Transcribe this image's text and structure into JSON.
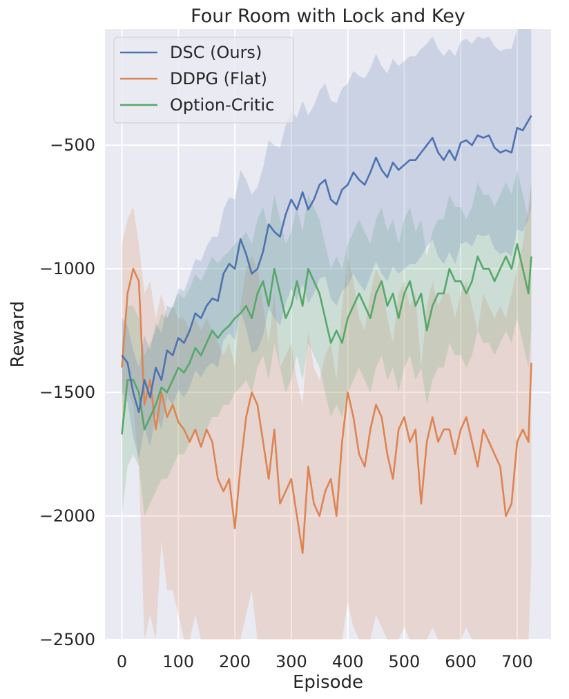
{
  "chart_data": {
    "type": "line",
    "title": "Four Room with Lock and Key",
    "xlabel": "Episode",
    "ylabel": "Reward",
    "xlim": [
      -30,
      760
    ],
    "ylim": [
      -2500,
      -30
    ],
    "xticks": [
      0,
      100,
      200,
      300,
      400,
      500,
      600,
      700
    ],
    "yticks": [
      -2500,
      -2000,
      -1500,
      -1000,
      -500
    ],
    "tick_labels_x": [
      "0",
      "100",
      "200",
      "300",
      "400",
      "500",
      "600",
      "700"
    ],
    "tick_labels_y": [
      "−2500",
      "−2000",
      "−1500",
      "−1000",
      "−500"
    ],
    "grid": true,
    "legend_position": "top-left",
    "background": "#eaeaf2",
    "series": [
      {
        "name": "DSC (Ours)",
        "color": "#4c72b0",
        "x": [
          0,
          10,
          20,
          30,
          40,
          50,
          60,
          70,
          80,
          90,
          100,
          110,
          120,
          130,
          140,
          150,
          160,
          170,
          180,
          190,
          200,
          210,
          220,
          230,
          240,
          250,
          260,
          270,
          280,
          290,
          300,
          310,
          320,
          330,
          340,
          350,
          360,
          370,
          380,
          390,
          400,
          410,
          420,
          430,
          440,
          450,
          460,
          470,
          480,
          490,
          500,
          510,
          520,
          530,
          540,
          550,
          560,
          570,
          580,
          590,
          600,
          610,
          620,
          630,
          640,
          650,
          660,
          670,
          680,
          690,
          700,
          710,
          720,
          725
        ],
        "mean": [
          -1350,
          -1380,
          -1500,
          -1580,
          -1450,
          -1520,
          -1400,
          -1450,
          -1330,
          -1350,
          -1280,
          -1300,
          -1250,
          -1180,
          -1200,
          -1150,
          -1120,
          -1130,
          -1020,
          -980,
          -1000,
          -880,
          -940,
          -1020,
          -1000,
          -930,
          -820,
          -850,
          -870,
          -780,
          -720,
          -760,
          -690,
          -760,
          -720,
          -660,
          -640,
          -720,
          -740,
          -680,
          -660,
          -610,
          -640,
          -660,
          -610,
          -550,
          -600,
          -630,
          -570,
          -600,
          -580,
          -560,
          -560,
          -530,
          -500,
          -470,
          -530,
          -560,
          -520,
          -560,
          -490,
          -480,
          -500,
          -460,
          -470,
          -460,
          -510,
          -530,
          -520,
          -530,
          -430,
          -440,
          -400,
          -380
        ],
        "upper": [
          -1200,
          -1230,
          -1330,
          -1400,
          -1270,
          -1330,
          -1220,
          -1260,
          -1150,
          -1160,
          -1080,
          -1090,
          -1030,
          -960,
          -970,
          -910,
          -870,
          -870,
          -760,
          -710,
          -720,
          -600,
          -640,
          -700,
          -670,
          -590,
          -480,
          -500,
          -510,
          -420,
          -360,
          -390,
          -320,
          -380,
          -340,
          -280,
          -250,
          -320,
          -330,
          -270,
          -250,
          -200,
          -220,
          -230,
          -190,
          -130,
          -180,
          -210,
          -150,
          -180,
          -160,
          -140,
          -140,
          -110,
          -90,
          -60,
          -110,
          -140,
          -110,
          -140,
          -80,
          -70,
          -90,
          -60,
          -70,
          -60,
          -100,
          -120,
          -110,
          -110,
          -20,
          -30,
          0,
          0
        ],
        "lower": [
          -1500,
          -1540,
          -1680,
          -1770,
          -1640,
          -1720,
          -1590,
          -1650,
          -1520,
          -1550,
          -1490,
          -1520,
          -1480,
          -1410,
          -1440,
          -1400,
          -1380,
          -1400,
          -1290,
          -1260,
          -1290,
          -1170,
          -1240,
          -1340,
          -1330,
          -1270,
          -1160,
          -1200,
          -1230,
          -1140,
          -1080,
          -1130,
          -1060,
          -1140,
          -1100,
          -1040,
          -1030,
          -1120,
          -1150,
          -1090,
          -1070,
          -1020,
          -1060,
          -1090,
          -1030,
          -970,
          -1020,
          -1050,
          -990,
          -1020,
          -1000,
          -980,
          -980,
          -950,
          -910,
          -880,
          -950,
          -980,
          -930,
          -980,
          -900,
          -890,
          -910,
          -860,
          -870,
          -860,
          -920,
          -940,
          -930,
          -950,
          -840,
          -850,
          -800,
          -760
        ]
      },
      {
        "name": "DDPG (Flat)",
        "color": "#dd8452",
        "x": [
          0,
          10,
          20,
          30,
          40,
          50,
          60,
          70,
          80,
          90,
          100,
          110,
          120,
          130,
          140,
          150,
          160,
          170,
          180,
          190,
          200,
          210,
          220,
          230,
          240,
          250,
          260,
          270,
          280,
          290,
          300,
          310,
          320,
          330,
          340,
          350,
          360,
          370,
          380,
          390,
          400,
          410,
          420,
          430,
          440,
          450,
          460,
          470,
          480,
          490,
          500,
          510,
          520,
          530,
          540,
          550,
          560,
          570,
          580,
          590,
          600,
          610,
          620,
          630,
          640,
          650,
          660,
          670,
          680,
          690,
          700,
          710,
          720,
          725
        ],
        "mean": [
          -1400,
          -1100,
          -1000,
          -1050,
          -1550,
          -1450,
          -1650,
          -1500,
          -1600,
          -1550,
          -1620,
          -1650,
          -1700,
          -1650,
          -1720,
          -1650,
          -1700,
          -1850,
          -1900,
          -1850,
          -2050,
          -1800,
          -1600,
          -1500,
          -1550,
          -1700,
          -1850,
          -1650,
          -1950,
          -1900,
          -1850,
          -2000,
          -2150,
          -1800,
          -1950,
          -2000,
          -1900,
          -1850,
          -2000,
          -1700,
          -1500,
          -1600,
          -1750,
          -1800,
          -1650,
          -1550,
          -1600,
          -1750,
          -1850,
          -1650,
          -1600,
          -1700,
          -1650,
          -1950,
          -1700,
          -1600,
          -1700,
          -1650,
          -1650,
          -1750,
          -1650,
          -1600,
          -1700,
          -1800,
          -1650,
          -1700,
          -1750,
          -1800,
          -2000,
          -1950,
          -1700,
          -1650,
          -1700,
          -1380
        ],
        "upper": [
          -900,
          -800,
          -750,
          -900,
          -1100,
          -1050,
          -1200,
          -1100,
          -1200,
          -1150,
          -1200,
          -1200,
          -1250,
          -1200,
          -1250,
          -1200,
          -1250,
          -1300,
          -1350,
          -1300,
          -1400,
          -1150,
          -1000,
          -950,
          -1000,
          -1150,
          -1300,
          -1100,
          -1400,
          -1350,
          -1300,
          -1450,
          -1550,
          -1250,
          -1400,
          -1450,
          -1350,
          -1300,
          -1450,
          -1150,
          -950,
          -1050,
          -1200,
          -1250,
          -1100,
          -1000,
          -1050,
          -1200,
          -1300,
          -1100,
          -1050,
          -1150,
          -1100,
          -1400,
          -1150,
          -1050,
          -1150,
          -1100,
          -1100,
          -1200,
          -1100,
          -1050,
          -1150,
          -1250,
          -1100,
          -1150,
          -1200,
          -1150,
          -1200,
          -1100,
          -1000,
          -900,
          -750,
          -650
        ],
        "lower": [
          -1700,
          -1500,
          -1550,
          -1800,
          -2500,
          -2400,
          -2500,
          -2100,
          -2300,
          -2300,
          -2400,
          -2500,
          -2500,
          -2400,
          -2500,
          -2500,
          -2500,
          -2500,
          -2500,
          -2500,
          -2500,
          -2500,
          -2400,
          -2300,
          -2500,
          -2500,
          -2500,
          -2500,
          -2500,
          -2500,
          -2500,
          -2500,
          -2500,
          -2500,
          -2500,
          -2500,
          -2500,
          -2500,
          -2500,
          -2500,
          -2350,
          -2450,
          -2500,
          -2500,
          -2500,
          -2400,
          -2450,
          -2500,
          -2500,
          -2500,
          -2450,
          -2500,
          -2500,
          -2500,
          -2500,
          -2450,
          -2500,
          -2500,
          -2500,
          -2500,
          -2500,
          -2450,
          -2500,
          -2500,
          -2500,
          -2500,
          -2500,
          -2500,
          -2500,
          -2500,
          -2500,
          -2500,
          -2500,
          -2200
        ]
      },
      {
        "name": "Option-Critic",
        "color": "#55a868",
        "x": [
          0,
          10,
          20,
          30,
          40,
          50,
          60,
          70,
          80,
          90,
          100,
          110,
          120,
          130,
          140,
          150,
          160,
          170,
          180,
          190,
          200,
          210,
          220,
          230,
          240,
          250,
          260,
          270,
          280,
          290,
          300,
          310,
          320,
          330,
          340,
          350,
          360,
          370,
          380,
          390,
          400,
          410,
          420,
          430,
          440,
          450,
          460,
          470,
          480,
          490,
          500,
          510,
          520,
          530,
          540,
          550,
          560,
          570,
          580,
          590,
          600,
          610,
          620,
          630,
          640,
          650,
          660,
          670,
          680,
          690,
          700,
          710,
          720,
          725
        ],
        "mean": [
          -1670,
          -1450,
          -1450,
          -1500,
          -1650,
          -1600,
          -1550,
          -1480,
          -1500,
          -1450,
          -1400,
          -1420,
          -1380,
          -1320,
          -1350,
          -1300,
          -1250,
          -1280,
          -1250,
          -1230,
          -1200,
          -1180,
          -1150,
          -1200,
          -1100,
          -1050,
          -1150,
          -1000,
          -1100,
          -1200,
          -1150,
          -1050,
          -1150,
          -1000,
          -1050,
          -1100,
          -1200,
          -1300,
          -1250,
          -1300,
          -1200,
          -1150,
          -1100,
          -1150,
          -1200,
          -1100,
          -1050,
          -1150,
          -1100,
          -1200,
          -1100,
          -1050,
          -1150,
          -1100,
          -1250,
          -1150,
          -1100,
          -1100,
          -1000,
          -1050,
          -1050,
          -1100,
          -1050,
          -950,
          -1000,
          -1000,
          -1050,
          -1000,
          -950,
          -1000,
          -900,
          -1000,
          -1100,
          -950
        ],
        "upper": [
          -1300,
          -1150,
          -1150,
          -1200,
          -1350,
          -1300,
          -1250,
          -1180,
          -1200,
          -1150,
          -1100,
          -1120,
          -1080,
          -1020,
          -1050,
          -1000,
          -950,
          -980,
          -950,
          -930,
          -900,
          -880,
          -850,
          -900,
          -800,
          -750,
          -850,
          -700,
          -800,
          -900,
          -850,
          -750,
          -850,
          -700,
          -750,
          -800,
          -900,
          -1000,
          -950,
          -1000,
          -900,
          -850,
          -800,
          -850,
          -900,
          -800,
          -750,
          -850,
          -800,
          -900,
          -800,
          -750,
          -850,
          -800,
          -950,
          -850,
          -800,
          -800,
          -700,
          -750,
          -750,
          -800,
          -750,
          -650,
          -700,
          -700,
          -750,
          -700,
          -650,
          -700,
          -600,
          -700,
          -800,
          -650
        ],
        "lower": [
          -2000,
          -1800,
          -1750,
          -1800,
          -2000,
          -1950,
          -1900,
          -1850,
          -1850,
          -1800,
          -1750,
          -1750,
          -1700,
          -1650,
          -1700,
          -1650,
          -1600,
          -1600,
          -1550,
          -1550,
          -1500,
          -1480,
          -1450,
          -1500,
          -1400,
          -1350,
          -1450,
          -1300,
          -1400,
          -1500,
          -1450,
          -1350,
          -1450,
          -1300,
          -1350,
          -1400,
          -1500,
          -1600,
          -1550,
          -1600,
          -1500,
          -1450,
          -1400,
          -1450,
          -1500,
          -1400,
          -1350,
          -1450,
          -1400,
          -1500,
          -1400,
          -1350,
          -1450,
          -1400,
          -1550,
          -1450,
          -1400,
          -1400,
          -1300,
          -1350,
          -1350,
          -1400,
          -1350,
          -1250,
          -1300,
          -1300,
          -1350,
          -1300,
          -1250,
          -1300,
          -1200,
          -1300,
          -1400,
          -1250
        ]
      }
    ]
  }
}
